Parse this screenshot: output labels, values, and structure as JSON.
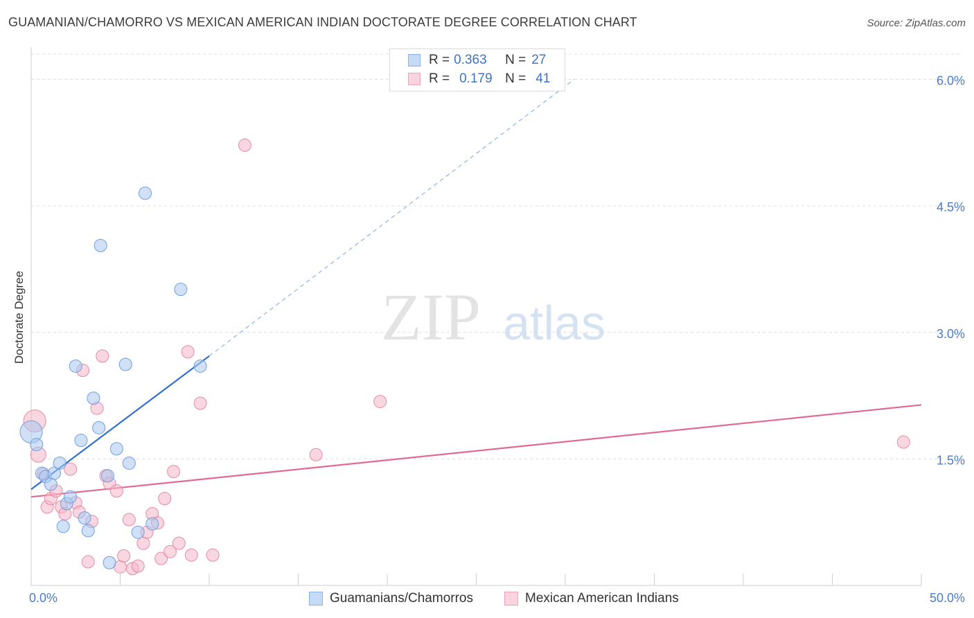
{
  "title": "GUAMANIAN/CHAMORRO VS MEXICAN AMERICAN INDIAN DOCTORATE DEGREE CORRELATION CHART",
  "source": "Source: ZipAtlas.com",
  "watermark": {
    "zip": "ZIP",
    "atlas": "atlas"
  },
  "legend": {
    "rows": [
      {
        "r_label": "R = ",
        "r_value": "0.363",
        "n_label": "N = ",
        "n_value": "27",
        "color": "#a9c8f0"
      },
      {
        "r_label": "R = ",
        "r_value": "0.179",
        "n_label": "N = ",
        "n_value": "41",
        "color": "#f4b6c9"
      }
    ]
  },
  "bottom_legend": [
    {
      "label": "Guamanians/Chamorros",
      "color": "#a9c8f0"
    },
    {
      "label": "Mexican American Indians",
      "color": "#f4b6c9"
    }
  ],
  "chart_data": {
    "type": "scatter",
    "ylabel": "Doctorate Degree",
    "xlim": [
      0,
      50
    ],
    "ylim": [
      0,
      6.3
    ],
    "x_tick_labels": [
      {
        "value": 0,
        "label": "0.0%"
      },
      {
        "value": 50,
        "label": "50.0%"
      }
    ],
    "y_tick_labels": [
      {
        "value": 1.5,
        "label": "1.5%"
      },
      {
        "value": 3.0,
        "label": "3.0%"
      },
      {
        "value": 4.5,
        "label": "4.5%"
      },
      {
        "value": 6.0,
        "label": "6.0%"
      }
    ],
    "x_minor_ticks": [
      5,
      10,
      15,
      20,
      25,
      30,
      35,
      40,
      45,
      50
    ],
    "grid": "horizontal dashed",
    "series": [
      {
        "name": "Guamanians/Chamorros",
        "color": "#a9c8f0",
        "stroke": "#6f9fdc",
        "points": [
          [
            0.0,
            1.82,
            16
          ],
          [
            0.3,
            1.67,
            9
          ],
          [
            0.6,
            1.33,
            9
          ],
          [
            0.8,
            1.29,
            9
          ],
          [
            1.1,
            1.2,
            9
          ],
          [
            1.3,
            1.33,
            9
          ],
          [
            1.6,
            1.45,
            9
          ],
          [
            1.8,
            0.7,
            9
          ],
          [
            2.0,
            0.97,
            9
          ],
          [
            2.2,
            1.05,
            9
          ],
          [
            2.5,
            2.6,
            9
          ],
          [
            2.8,
            1.72,
            9
          ],
          [
            3.0,
            0.8,
            9
          ],
          [
            3.2,
            0.65,
            9
          ],
          [
            3.5,
            2.22,
            9
          ],
          [
            3.8,
            1.87,
            9
          ],
          [
            3.9,
            4.03,
            9
          ],
          [
            4.3,
            1.3,
            9
          ],
          [
            4.4,
            0.27,
            9
          ],
          [
            4.8,
            1.62,
            9
          ],
          [
            5.3,
            2.62,
            9
          ],
          [
            5.5,
            1.45,
            9
          ],
          [
            6.0,
            0.63,
            9
          ],
          [
            6.4,
            4.65,
            9
          ],
          [
            6.8,
            0.73,
            9
          ],
          [
            8.4,
            3.51,
            9
          ],
          [
            9.5,
            2.6,
            9
          ]
        ],
        "trend": {
          "x0": 0.0,
          "y0": 1.14,
          "x1": 10.0,
          "y1": 2.72,
          "dash_to_x": 30.5,
          "dash_to_y": 6.0
        }
      },
      {
        "name": "Mexican American Indians",
        "color": "#f4b6c9",
        "stroke": "#e48aa8",
        "points": [
          [
            0.2,
            1.95,
            16
          ],
          [
            0.4,
            1.55,
            11
          ],
          [
            0.7,
            1.32,
            9
          ],
          [
            0.9,
            0.93,
            9
          ],
          [
            1.1,
            1.03,
            9
          ],
          [
            1.4,
            1.12,
            9
          ],
          [
            1.7,
            0.93,
            9
          ],
          [
            1.9,
            0.85,
            9
          ],
          [
            2.2,
            1.38,
            9
          ],
          [
            2.5,
            0.98,
            9
          ],
          [
            2.7,
            0.87,
            9
          ],
          [
            2.9,
            2.55,
            9
          ],
          [
            3.2,
            0.28,
            9
          ],
          [
            3.4,
            0.76,
            9
          ],
          [
            3.7,
            2.1,
            9
          ],
          [
            4.0,
            2.72,
            9
          ],
          [
            4.2,
            1.3,
            9
          ],
          [
            4.4,
            1.21,
            9
          ],
          [
            4.8,
            1.12,
            9
          ],
          [
            5.0,
            0.22,
            9
          ],
          [
            5.2,
            0.35,
            9
          ],
          [
            5.5,
            0.78,
            9
          ],
          [
            5.7,
            0.2,
            9
          ],
          [
            6.0,
            0.23,
            9
          ],
          [
            6.3,
            0.5,
            9
          ],
          [
            6.5,
            0.63,
            9
          ],
          [
            6.8,
            0.85,
            9
          ],
          [
            7.1,
            0.74,
            9
          ],
          [
            7.3,
            0.32,
            9
          ],
          [
            7.5,
            1.03,
            9
          ],
          [
            7.8,
            0.4,
            9
          ],
          [
            8.0,
            1.35,
            9
          ],
          [
            8.3,
            0.5,
            9
          ],
          [
            8.8,
            2.77,
            9
          ],
          [
            9.0,
            0.36,
            9
          ],
          [
            9.5,
            2.16,
            9
          ],
          [
            10.2,
            0.36,
            9
          ],
          [
            12.0,
            5.22,
            9
          ],
          [
            16.0,
            1.55,
            9
          ],
          [
            19.6,
            2.18,
            9
          ],
          [
            49.0,
            1.7,
            9
          ]
        ],
        "trend": {
          "x0": 0.0,
          "y0": 1.05,
          "x1": 50.0,
          "y1": 2.14
        }
      }
    ]
  }
}
